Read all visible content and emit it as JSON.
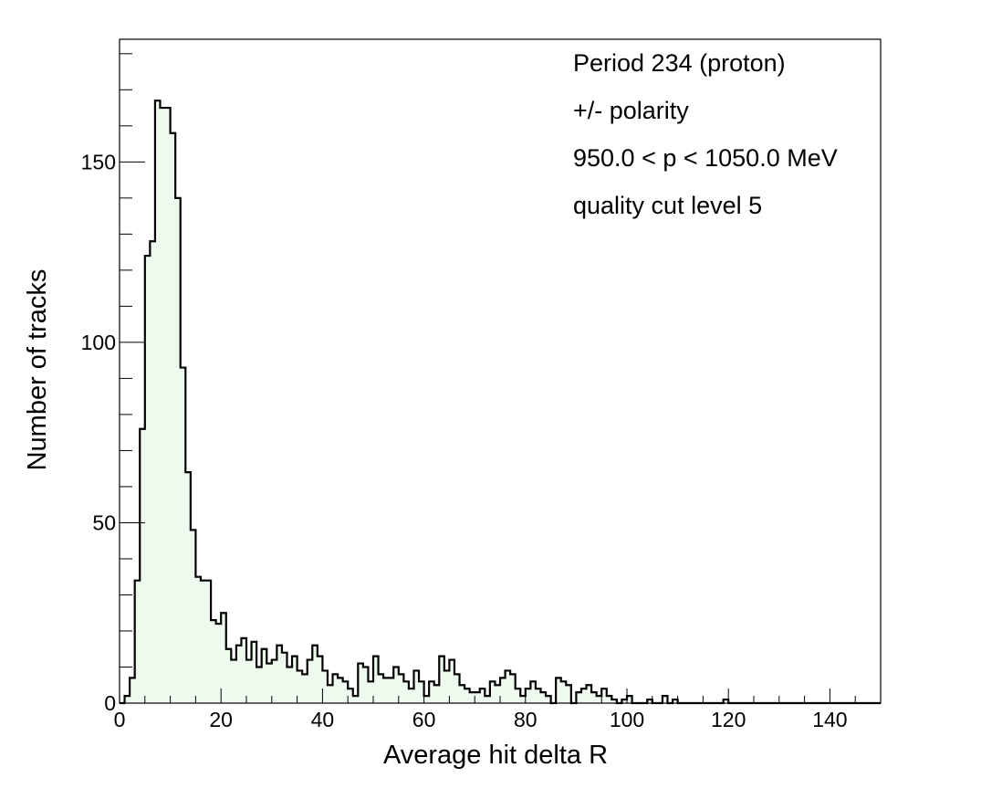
{
  "chart_data": {
    "type": "histogram",
    "xlabel": "Average hit delta R",
    "ylabel": "Number of tracks",
    "xlim": [
      0,
      150
    ],
    "ylim": [
      0,
      184
    ],
    "bin_width": 1,
    "x_ticks": [
      0,
      20,
      40,
      60,
      80,
      100,
      120,
      140
    ],
    "y_ticks": [
      0,
      50,
      100,
      150
    ],
    "annotations": [
      "Period 234 (proton)",
      "+/- polarity",
      "950.0 < p < 1050.0 MeV",
      "quality cut level 5"
    ],
    "fill_color": "#eefaee",
    "line_color": "#000000",
    "grid": false,
    "legend": false,
    "counts": [
      0,
      2,
      7,
      34,
      76,
      124,
      128,
      167,
      165,
      165,
      158,
      140,
      93,
      64,
      48,
      35,
      34,
      34,
      23,
      22,
      25,
      15,
      12,
      16,
      18,
      12,
      17,
      10,
      15,
      11,
      12,
      16,
      14,
      10,
      13,
      9,
      8,
      12,
      16,
      13,
      9,
      5,
      8,
      7,
      6,
      4,
      2,
      11,
      10,
      6,
      13,
      8,
      7,
      7,
      10,
      8,
      6,
      4,
      9,
      6,
      2,
      6,
      5,
      13,
      9,
      12,
      8,
      5,
      4,
      3,
      3,
      4,
      2,
      6,
      5,
      7,
      9,
      8,
      4,
      2,
      4,
      6,
      4,
      3,
      2,
      0,
      7,
      6,
      5,
      0,
      3,
      4,
      5,
      3,
      2,
      4,
      2,
      1,
      0,
      1,
      2,
      0,
      0,
      0,
      1,
      0,
      0,
      2,
      0,
      1,
      0,
      0,
      0,
      0,
      0,
      0,
      0,
      0,
      0,
      1,
      0,
      0,
      0,
      0,
      0,
      0,
      0,
      0,
      0,
      0,
      0,
      0,
      0,
      0,
      0,
      0,
      0,
      0,
      0,
      0,
      0,
      0,
      0,
      0,
      0,
      0,
      0,
      0,
      0,
      0
    ]
  }
}
